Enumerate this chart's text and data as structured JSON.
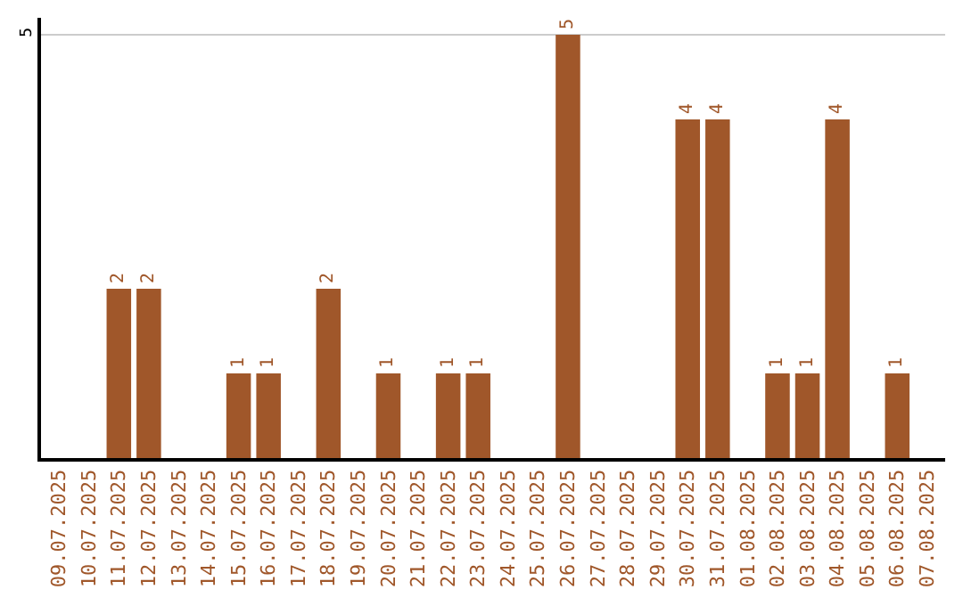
{
  "chart_data": {
    "type": "bar",
    "categories": [
      "09.07.2025",
      "10.07.2025",
      "11.07.2025",
      "12.07.2025",
      "13.07.2025",
      "14.07.2025",
      "15.07.2025",
      "16.07.2025",
      "17.07.2025",
      "18.07.2025",
      "19.07.2025",
      "20.07.2025",
      "21.07.2025",
      "22.07.2025",
      "23.07.2025",
      "24.07.2025",
      "25.07.2025",
      "26.07.2025",
      "27.07.2025",
      "28.07.2025",
      "29.07.2025",
      "30.07.2025",
      "31.07.2025",
      "01.08.2025",
      "02.08.2025",
      "03.08.2025",
      "04.08.2025",
      "05.08.2025",
      "06.08.2025",
      "07.08.2025"
    ],
    "values": [
      0,
      0,
      2,
      2,
      0,
      0,
      1,
      1,
      0,
      2,
      0,
      1,
      0,
      1,
      1,
      0,
      0,
      5,
      0,
      0,
      0,
      4,
      4,
      0,
      1,
      1,
      4,
      0,
      1,
      0
    ],
    "value_labels": [
      null,
      null,
      "2",
      "2",
      null,
      null,
      "1",
      "1",
      null,
      "2",
      null,
      "1",
      null,
      "1",
      "1",
      null,
      null,
      "5",
      null,
      null,
      null,
      "4",
      "4",
      null,
      "1",
      "1",
      "4",
      null,
      "1",
      null
    ],
    "color": "#a0572a",
    "ylim": [
      0,
      5.2
    ],
    "yticks": [
      5
    ],
    "grid": "y",
    "legend": false
  }
}
